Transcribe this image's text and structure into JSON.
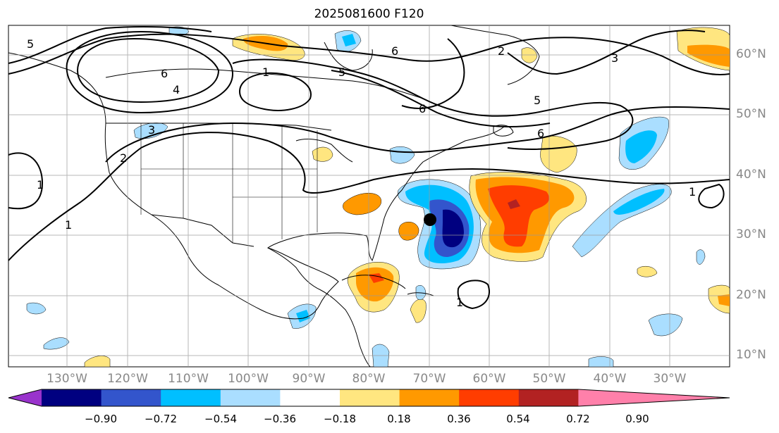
{
  "title": "2025081600 F120",
  "lat_labels": [
    "60°N",
    "50°N",
    "40°N",
    "30°N",
    "20°N",
    "10°N"
  ],
  "lon_labels": [
    "130°W",
    "120°W",
    "110°W",
    "100°W",
    "90°W",
    "80°W",
    "70°W",
    "60°W",
    "50°W",
    "40°W",
    "30°W"
  ],
  "colorbar": {
    "ticks": [
      "−0.90",
      "−0.72",
      "−0.54",
      "−0.36",
      "−0.18",
      "0.18",
      "0.36",
      "0.54",
      "0.72",
      "0.90"
    ],
    "colors": [
      "#9933cc",
      "#000080",
      "#3355cc",
      "#00bfff",
      "#aadeff",
      "#ffffff",
      "#ffe680",
      "#ff9900",
      "#ff3d00",
      "#b22222",
      "#ff80aa"
    ]
  },
  "contour_labels": [
    "5",
    "6",
    "4",
    "1",
    "3",
    "2",
    "1",
    "1",
    "5",
    "6",
    "6",
    "2",
    "3",
    "5",
    "6",
    "1",
    "1"
  ],
  "marker": "storm-position"
}
